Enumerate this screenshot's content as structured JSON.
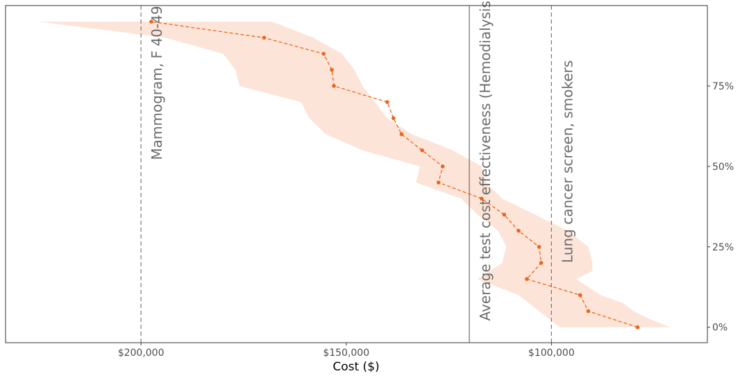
{
  "chart_data": {
    "type": "line",
    "xlabel": "Cost ($)",
    "ylabel": "",
    "x_reversed": true,
    "xlim": [
      233000,
      62000
    ],
    "ylim": [
      -0.048,
      1.0
    ],
    "x_ticks": [
      {
        "value": 200000,
        "label": "$200,000"
      },
      {
        "value": 150000,
        "label": "$150,000"
      },
      {
        "value": 100000,
        "label": "$100,000"
      }
    ],
    "y_ticks": [
      {
        "value": 0.0,
        "label": "0%"
      },
      {
        "value": 0.25,
        "label": "25%"
      },
      {
        "value": 0.5,
        "label": "50%"
      },
      {
        "value": 0.75,
        "label": "75%"
      }
    ],
    "y_axis_position": "right",
    "grid": false,
    "colors": {
      "line": "#e8671d",
      "band": "#fde4d8",
      "reference": "#6b6b6b"
    },
    "series": [
      {
        "style": "dashed line with points",
        "points": [
          [
            79000,
            0.0
          ],
          [
            91000,
            0.05
          ],
          [
            93000,
            0.1
          ],
          [
            106000,
            0.15
          ],
          [
            102500,
            0.2
          ],
          [
            103000,
            0.25
          ],
          [
            108000,
            0.3
          ],
          [
            111500,
            0.35
          ],
          [
            117000,
            0.4
          ],
          [
            127500,
            0.45
          ],
          [
            126500,
            0.5
          ],
          [
            131500,
            0.55
          ],
          [
            136500,
            0.6
          ],
          [
            138500,
            0.65
          ],
          [
            140000,
            0.7
          ],
          [
            153000,
            0.75
          ],
          [
            153500,
            0.8
          ],
          [
            155500,
            0.85
          ],
          [
            170000,
            0.9
          ],
          [
            197500,
            0.95
          ]
        ]
      }
    ],
    "band": {
      "upper": [
        [
          71000,
          0.0
        ],
        [
          76000,
          0.025
        ],
        [
          80000,
          0.05
        ],
        [
          82500,
          0.075
        ],
        [
          88000,
          0.1
        ],
        [
          91000,
          0.125
        ],
        [
          94000,
          0.15
        ],
        [
          90000,
          0.175
        ],
        [
          90000,
          0.2
        ],
        [
          91000,
          0.25
        ],
        [
          96000,
          0.3
        ],
        [
          104000,
          0.35
        ],
        [
          112000,
          0.4
        ],
        [
          116000,
          0.45
        ],
        [
          117000,
          0.5
        ],
        [
          124000,
          0.55
        ],
        [
          134000,
          0.6
        ],
        [
          140000,
          0.65
        ],
        [
          143000,
          0.7
        ],
        [
          146000,
          0.75
        ],
        [
          148000,
          0.8
        ],
        [
          151000,
          0.85
        ],
        [
          158000,
          0.9
        ],
        [
          168000,
          0.95
        ],
        [
          225000,
          0.95
        ]
      ],
      "lower": [
        [
          225000,
          0.95
        ],
        [
          194000,
          0.9
        ],
        [
          180000,
          0.85
        ],
        [
          177000,
          0.8
        ],
        [
          176000,
          0.75
        ],
        [
          161000,
          0.7
        ],
        [
          159000,
          0.65
        ],
        [
          155000,
          0.6
        ],
        [
          146000,
          0.55
        ],
        [
          132000,
          0.5
        ],
        [
          133000,
          0.45
        ],
        [
          122000,
          0.4
        ],
        [
          118000,
          0.35
        ],
        [
          113000,
          0.3
        ],
        [
          111000,
          0.25
        ],
        [
          112000,
          0.2
        ],
        [
          118000,
          0.15
        ],
        [
          108000,
          0.1
        ],
        [
          103000,
          0.05
        ],
        [
          98000,
          0.0
        ]
      ]
    },
    "reference_lines": [
      {
        "x": 200000,
        "style": "dashed",
        "label": "Mammogram, F 40-49",
        "label_y": 0.52
      },
      {
        "x": 120000,
        "style": "solid",
        "label": "Average test cost effectiveness (Hemodialysis)",
        "label_y": 0.02
      },
      {
        "x": 100000,
        "style": "dashed",
        "label": "Lung cancer screen, smokers",
        "label_y": 0.2
      }
    ]
  }
}
